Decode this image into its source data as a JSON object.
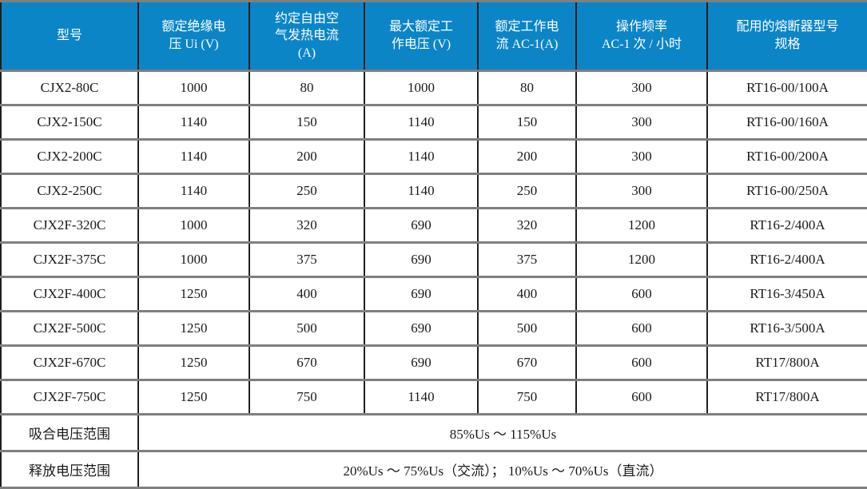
{
  "colors": {
    "header_bg": "#0c85c7",
    "header_text": "#ffffff",
    "body_text": "#1a1a1a",
    "grid_horizontal": "#7f7f7f",
    "grid_vertical": "#1f1f1f",
    "outer_border": "#404040"
  },
  "table": {
    "columns": [
      {
        "label": "型号"
      },
      {
        "label": "额定绝缘电\n压 Ui (V)"
      },
      {
        "label": "约定自由空\n气发热电流\n(A)"
      },
      {
        "label": "最大额定工\n作电压 (V)"
      },
      {
        "label": "额定工作电\n流 AC-1(A)"
      },
      {
        "label": "操作频率\nAC-1 次 / 小时"
      },
      {
        "label": "配用的熔断器型号\n规格"
      }
    ],
    "rows": [
      [
        "CJX2-80C",
        "1000",
        "80",
        "1000",
        "80",
        "300",
        "RT16-00/100A"
      ],
      [
        "CJX2-150C",
        "1140",
        "150",
        "1140",
        "150",
        "300",
        "RT16-00/160A"
      ],
      [
        "CJX2-200C",
        "1140",
        "200",
        "1140",
        "200",
        "300",
        "RT16-00/200A"
      ],
      [
        "CJX2-250C",
        "1140",
        "250",
        "1140",
        "250",
        "300",
        "RT16-00/250A"
      ],
      [
        "CJX2F-320C",
        "1000",
        "320",
        "690",
        "320",
        "1200",
        "RT16-2/400A"
      ],
      [
        "CJX2F-375C",
        "1000",
        "375",
        "690",
        "375",
        "1200",
        "RT16-2/400A"
      ],
      [
        "CJX2F-400C",
        "1250",
        "400",
        "690",
        "400",
        "600",
        "RT16-3/450A"
      ],
      [
        "CJX2F-500C",
        "1250",
        "500",
        "690",
        "500",
        "600",
        "RT16-3/500A"
      ],
      [
        "CJX2F-670C",
        "1250",
        "670",
        "690",
        "670",
        "600",
        "RT17/800A"
      ],
      [
        "CJX2F-750C",
        "1250",
        "750",
        "1140",
        "750",
        "600",
        "RT17/800A"
      ]
    ],
    "footer_rows": [
      {
        "label": "吸合电压范围",
        "value": "85%Us ～ 115%Us"
      },
      {
        "label": "释放电压范围",
        "value": "20%Us ～ 75%Us（交流）； 10%Us ～ 70%Us（直流）"
      }
    ]
  }
}
